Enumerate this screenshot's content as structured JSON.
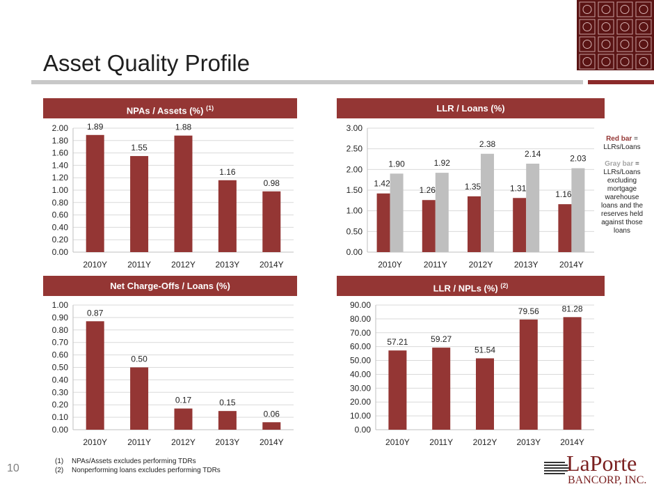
{
  "slide": {
    "title": "Asset Quality Profile",
    "page_number": "10",
    "colors": {
      "accent": "#943634",
      "gray_bar": "#bfbfbf",
      "rule_gray": "#c8c8c8"
    }
  },
  "legend_note": {
    "red_label": "Red bar",
    "red_text": " = LLRs/Loans",
    "gray_label": "Gray bar",
    "gray_text": " = LLRs/Loans excluding mortgage warehouse loans and the reserves held against those loans"
  },
  "footnotes": [
    {
      "num": "(1)",
      "text": "NPAs/Assets excludes performing TDRs"
    },
    {
      "num": "(2)",
      "text": "Nonperforming loans excludes performing TDRs"
    }
  ],
  "brand": {
    "name": "LaPorte",
    "sub": "BANCORP, INC."
  },
  "chart_data": [
    {
      "id": "npas",
      "type": "bar",
      "title": "NPAs / Assets (%)",
      "title_sup": "(1)",
      "categories": [
        "2010Y",
        "2011Y",
        "2012Y",
        "2013Y",
        "2014Y"
      ],
      "series": [
        {
          "values": [
            1.89,
            1.55,
            1.88,
            1.16,
            0.98
          ],
          "color": "#943634"
        }
      ],
      "ylim": [
        0,
        2.0
      ],
      "ystep": 0.2,
      "decimals": 2
    },
    {
      "id": "llr",
      "type": "bar",
      "title": "LLR / Loans (%)",
      "title_sup": "",
      "categories": [
        "2010Y",
        "2011Y",
        "2012Y",
        "2013Y",
        "2014Y"
      ],
      "series": [
        {
          "name": "LLRs/Loans",
          "values": [
            1.42,
            1.26,
            1.35,
            1.31,
            1.16
          ],
          "color": "#943634"
        },
        {
          "name": "LLRs/Loans excluding mortgage warehouse loans and the reserves held against those loans",
          "values": [
            1.9,
            1.92,
            2.38,
            2.14,
            2.03
          ],
          "color": "#bfbfbf"
        }
      ],
      "ylim": [
        0,
        3.0
      ],
      "ystep": 0.5,
      "decimals": 2
    },
    {
      "id": "nco",
      "type": "bar",
      "title": "Net Charge-Offs / Loans (%)",
      "title_sup": "",
      "categories": [
        "2010Y",
        "2011Y",
        "2012Y",
        "2013Y",
        "2014Y"
      ],
      "series": [
        {
          "values": [
            0.87,
            0.5,
            0.17,
            0.15,
            0.06
          ],
          "color": "#943634"
        }
      ],
      "ylim": [
        0,
        1.0
      ],
      "ystep": 0.1,
      "decimals": 2
    },
    {
      "id": "npl",
      "type": "bar",
      "title": "LLR / NPLs (%)",
      "title_sup": "(2)",
      "categories": [
        "2010Y",
        "2011Y",
        "2012Y",
        "2013Y",
        "2014Y"
      ],
      "series": [
        {
          "values": [
            57.21,
            59.27,
            51.54,
            79.56,
            81.28
          ],
          "color": "#943634"
        }
      ],
      "ylim": [
        0,
        90.0
      ],
      "ystep": 10,
      "decimals": 2
    }
  ]
}
